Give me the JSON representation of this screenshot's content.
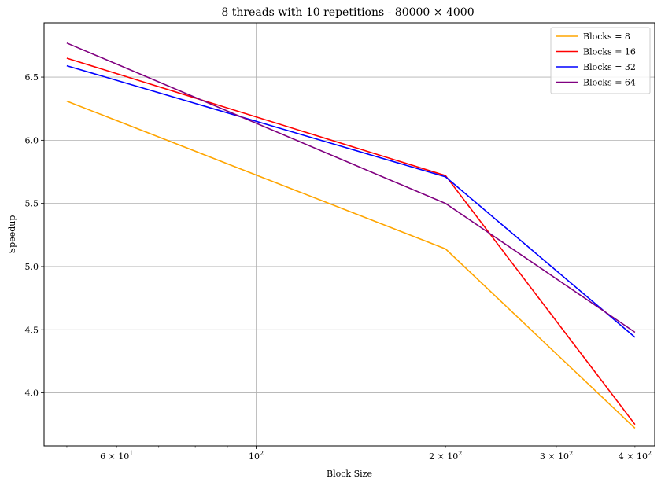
{
  "chart_data": {
    "type": "line",
    "title": "8 threads with 10 repetitions - 80000 × 4000",
    "xlabel": "Block Size",
    "ylabel": "Speedup",
    "xscale": "log",
    "x": [
      50,
      200,
      400
    ],
    "xlim": [
      46,
      430
    ],
    "ylim": [
      3.58,
      6.93
    ],
    "grid": true,
    "legend": "top-right",
    "x_ticks": [
      {
        "value": 60,
        "mantissa": "6",
        "base": "10",
        "exp": "1"
      },
      {
        "value": 100,
        "mantissa": "",
        "base": "10",
        "exp": "2"
      },
      {
        "value": 200,
        "mantissa": "2",
        "base": "10",
        "exp": "2"
      },
      {
        "value": 300,
        "mantissa": "3",
        "base": "10",
        "exp": "2"
      },
      {
        "value": 400,
        "mantissa": "4",
        "base": "10",
        "exp": "2"
      }
    ],
    "y_ticks": [
      "4.0",
      "4.5",
      "5.0",
      "5.5",
      "6.0",
      "6.5"
    ],
    "series": [
      {
        "name": "Blocks = 8",
        "color": "#ffa500",
        "values": [
          6.31,
          5.14,
          3.72
        ]
      },
      {
        "name": "Blocks = 16",
        "color": "#ff0000",
        "values": [
          6.65,
          5.72,
          3.75
        ]
      },
      {
        "name": "Blocks = 32",
        "color": "#0000ff",
        "values": [
          6.59,
          5.71,
          4.44
        ]
      },
      {
        "name": "Blocks = 64",
        "color": "#800080",
        "values": [
          6.77,
          5.5,
          4.48
        ]
      }
    ]
  }
}
